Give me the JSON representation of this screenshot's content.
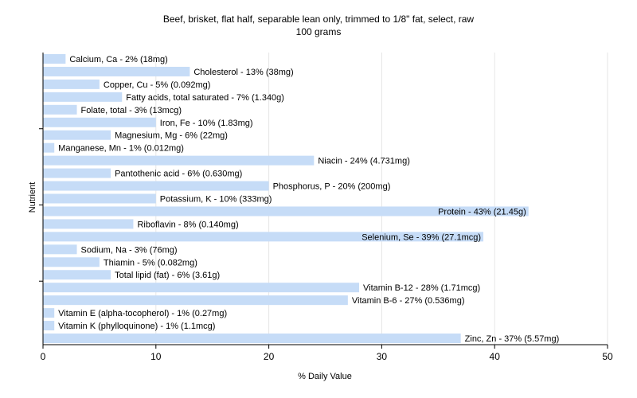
{
  "chart_data": {
    "type": "bar",
    "orientation": "horizontal",
    "title": "Beef, brisket, flat half, separable lean only, trimmed to 1/8\" fat, select, raw",
    "subtitle": "100 grams",
    "xlabel": "% Daily Value",
    "ylabel": "Nutrient",
    "xlim": [
      0,
      50
    ],
    "xticks": [
      0,
      10,
      20,
      30,
      40,
      50
    ],
    "grid": true,
    "legend": "none",
    "bar_color": "#c6dcf7",
    "categories": [
      "Calcium, Ca",
      "Cholesterol",
      "Copper, Cu",
      "Fatty acids, total saturated",
      "Folate, total",
      "Iron, Fe",
      "Magnesium, Mg",
      "Manganese, Mn",
      "Niacin",
      "Pantothenic acid",
      "Phosphorus, P",
      "Potassium, K",
      "Protein",
      "Riboflavin",
      "Selenium, Se",
      "Sodium, Na",
      "Thiamin",
      "Total lipid (fat)",
      "Vitamin B-12",
      "Vitamin B-6",
      "Vitamin E (alpha-tocopherol)",
      "Vitamin K (phylloquinone)",
      "Zinc, Zn"
    ],
    "values": [
      2,
      13,
      5,
      7,
      3,
      10,
      6,
      1,
      24,
      6,
      20,
      10,
      43,
      8,
      39,
      3,
      5,
      6,
      28,
      27,
      1,
      1,
      37
    ],
    "labels": [
      "Calcium, Ca - 2% (18mg)",
      "Cholesterol - 13% (38mg)",
      "Copper, Cu - 5% (0.092mg)",
      "Fatty acids, total saturated - 7% (1.340g)",
      "Folate, total - 3% (13mcg)",
      "Iron, Fe - 10% (1.83mg)",
      "Magnesium, Mg - 6% (22mg)",
      "Manganese, Mn - 1% (0.012mg)",
      "Niacin - 24% (4.731mg)",
      "Pantothenic acid - 6% (0.630mg)",
      "Phosphorus, P - 20% (200mg)",
      "Potassium, K - 10% (333mg)",
      "Protein - 43% (21.45g)",
      "Riboflavin - 8% (0.140mg)",
      "Selenium, Se - 39% (27.1mcg)",
      "Sodium, Na - 3% (76mg)",
      "Thiamin - 5% (0.082mg)",
      "Total lipid (fat) - 6% (3.61g)",
      "Vitamin B-12 - 28% (1.71mcg)",
      "Vitamin B-6 - 27% (0.536mg)",
      "Vitamin E (alpha-tocopherol) - 1% (0.27mg)",
      "Vitamin K (phylloquinone) - 1% (1.1mcg)",
      "Zinc, Zn - 37% (5.57mg)"
    ]
  }
}
